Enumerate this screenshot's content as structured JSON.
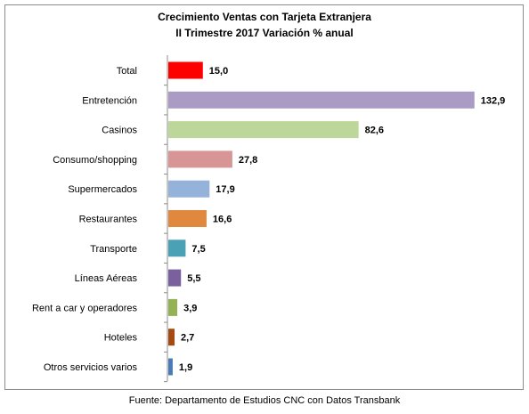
{
  "chart_data": {
    "type": "bar",
    "orientation": "horizontal",
    "title": "Crecimiento Ventas con Tarjeta Extranjera",
    "subtitle": "II Trimestre 2017 Variación % anual",
    "categories": [
      "Total",
      "Entretención",
      "Casinos",
      "Consumo/shopping",
      "Supermercados",
      "Restaurantes",
      "Transporte",
      "Líneas Aéreas",
      "Rent a car y operadores",
      "Hoteles",
      "Otros servicios varios"
    ],
    "values": [
      15.0,
      132.9,
      82.6,
      27.8,
      17.9,
      16.6,
      7.5,
      5.5,
      3.9,
      2.7,
      1.9
    ],
    "value_labels": [
      "15,0",
      "132,9",
      "82,6",
      "27,8",
      "17,9",
      "16,6",
      "7,5",
      "5,5",
      "3,9",
      "2,7",
      "1,9"
    ],
    "colors": [
      "#ff0000",
      "#a99bc4",
      "#bdd79a",
      "#d79595",
      "#95b2da",
      "#e0883e",
      "#4aa1b5",
      "#7b60a0",
      "#94b154",
      "#a44a12",
      "#4a7bb7"
    ],
    "xlim": [
      0,
      140
    ],
    "grid": false,
    "legend": "none",
    "source": "Fuente: Departamento de Estudios CNC con Datos Transbank"
  }
}
